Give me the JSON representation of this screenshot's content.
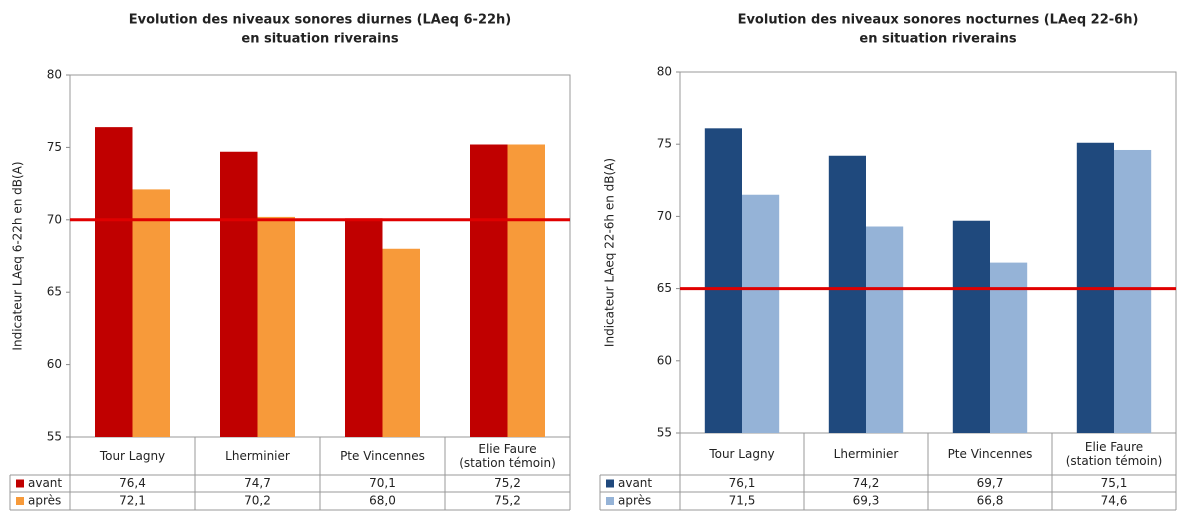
{
  "chart_data": [
    {
      "type": "bar",
      "title": [
        "Evolution des niveaux sonores diurnes (LAeq 6-22h)",
        "en situation riverains"
      ],
      "y_label": "Indicateur LAeq 6-22h en dB(A)",
      "categories": [
        "Tour Lagny",
        "Lherminier",
        "Pte Vincennes",
        "Elie Faure\n(station témoin)"
      ],
      "series": [
        {
          "name": "avant",
          "color": "#c00000",
          "values": [
            76.4,
            74.7,
            70.1,
            75.2
          ],
          "value_labels": [
            "76,4",
            "74,7",
            "70,1",
            "75,2"
          ]
        },
        {
          "name": "après",
          "color": "#f79a3a",
          "values": [
            72.1,
            70.2,
            68.0,
            75.2
          ],
          "value_labels": [
            "72,1",
            "70,2",
            "68,0",
            "75,2"
          ]
        }
      ],
      "threshold": 70,
      "threshold_color": "#e00000",
      "ylim": [
        55,
        80
      ],
      "yticks": [
        55,
        60,
        65,
        70,
        75,
        80
      ],
      "grid": false
    },
    {
      "type": "bar",
      "title": [
        "Evolution des niveaux sonores nocturnes (LAeq 22-6h)",
        "en situation riverains"
      ],
      "y_label": "Indicateur LAeq 22-6h en dB(A)",
      "categories": [
        "Tour Lagny",
        "Lherminier",
        "Pte Vincennes",
        "Elie Faure\n(station témoin)"
      ],
      "series": [
        {
          "name": "avant",
          "color": "#1f497d",
          "values": [
            76.1,
            74.2,
            69.7,
            75.1
          ],
          "value_labels": [
            "76,1",
            "74,2",
            "69,7",
            "75,1"
          ]
        },
        {
          "name": "après",
          "color": "#95b3d7",
          "values": [
            71.5,
            69.3,
            66.8,
            74.6
          ],
          "value_labels": [
            "71,5",
            "69,3",
            "66,8",
            "74,6"
          ]
        }
      ],
      "threshold": 65,
      "threshold_color": "#e00000",
      "ylim": [
        55,
        80
      ],
      "yticks": [
        55,
        60,
        65,
        70,
        75,
        80
      ],
      "grid": false
    }
  ]
}
